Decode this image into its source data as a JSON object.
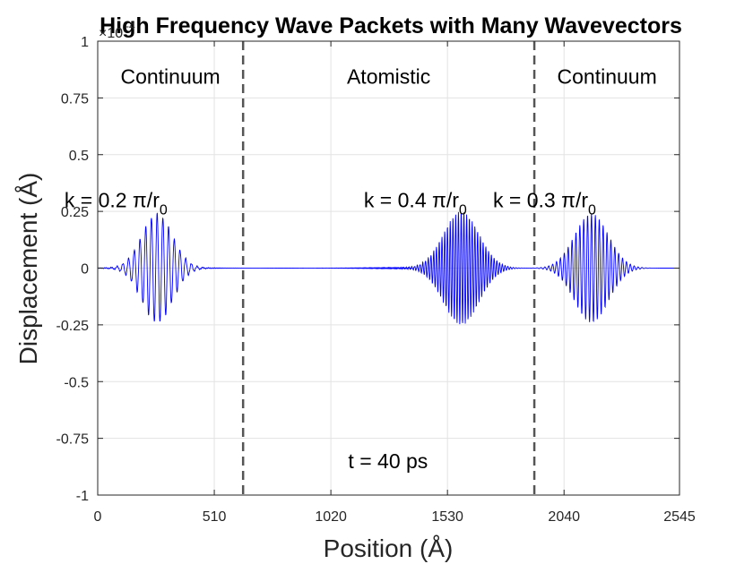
{
  "chart_data": {
    "type": "line",
    "title": "High Frequency Wave Packets with Many Wavevectors",
    "xlabel": "Position (Å)",
    "ylabel": "Displacement (Å)",
    "y_exponent_label": "×10",
    "y_exponent": "-4",
    "xlim": [
      0,
      2545
    ],
    "ylim": [
      -1,
      1
    ],
    "x_ticks": [
      "0",
      "510",
      "1020",
      "1530",
      "2040",
      "2545"
    ],
    "x_tick_values": [
      0,
      510,
      1020,
      1530,
      2040,
      2545
    ],
    "y_ticks": [
      "-1",
      "-0.75",
      "-0.5",
      "-0.25",
      "0",
      "0.25",
      "0.5",
      "0.75",
      "1"
    ],
    "y_tick_values": [
      -1,
      -0.75,
      -0.5,
      -0.25,
      0,
      0.25,
      0.5,
      0.75,
      1
    ],
    "grid": true,
    "boundaries": [
      636,
      1910
    ],
    "line_color": "#0000ff",
    "boundary_color": "#555555",
    "regions": [
      {
        "label": "Continuum",
        "x": 318
      },
      {
        "label": "Atomistic",
        "x": 1273
      },
      {
        "label": "Continuum",
        "x": 2228
      }
    ],
    "packets": [
      {
        "label_prefix": "k = 0.2 π/r",
        "label_sub": "0",
        "center": 260,
        "amplitude": 0.24,
        "width": 95,
        "wavelength": 25,
        "label_x": 305
      },
      {
        "label_prefix": "k = 0.4 π/r",
        "label_sub": "0",
        "center": 1590,
        "amplitude": 0.25,
        "width": 110,
        "wavelength": 12,
        "label_x": 1615
      },
      {
        "label_prefix": "k = 0.3 π/r",
        "label_sub": "0",
        "center": 2160,
        "amplitude": 0.24,
        "width": 105,
        "wavelength": 17,
        "label_x": 2180
      }
    ],
    "packet_label_y": 0.3,
    "time_label": "t = 40 ps",
    "time_label_pos": [
      1270,
      -0.85
    ],
    "region_label_y": 0.845
  }
}
